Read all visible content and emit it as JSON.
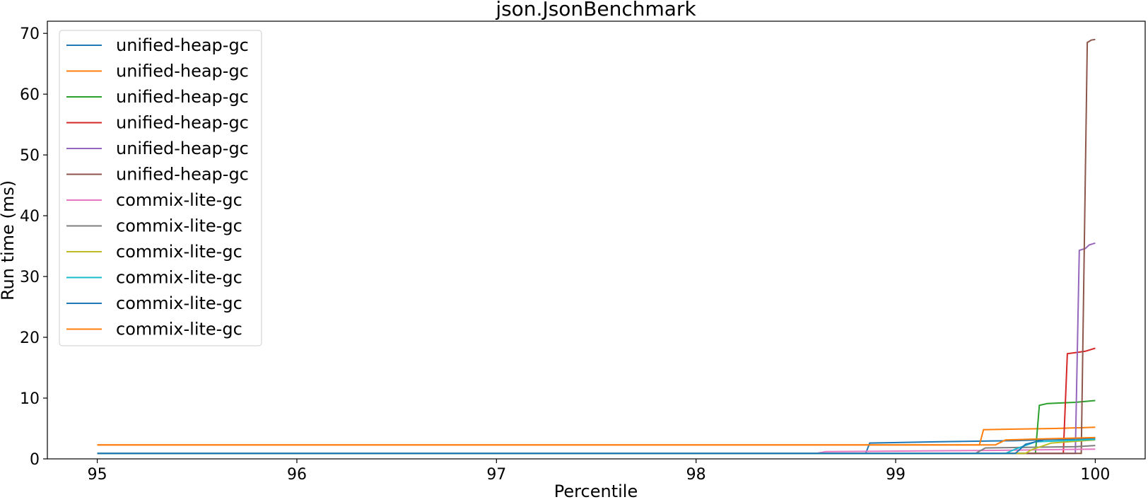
{
  "chart_data": {
    "type": "line",
    "title": "json.JsonBenchmark",
    "xlabel": "Percentile",
    "ylabel": "Run time (ms)",
    "xlim": [
      94.75,
      100.25
    ],
    "ylim": [
      0,
      72
    ],
    "xticks": [
      95,
      96,
      97,
      98,
      99,
      100
    ],
    "yticks": [
      0,
      10,
      20,
      30,
      40,
      50,
      60,
      70
    ],
    "legend_position": "top-left",
    "grid": false,
    "series": [
      {
        "name": "unified-heap-gc",
        "color": "#1f77b4",
        "points": [
          [
            95,
            0.9
          ],
          [
            98.85,
            0.9
          ],
          [
            98.87,
            2.6
          ],
          [
            99.2,
            2.8
          ],
          [
            99.6,
            3.0
          ],
          [
            99.8,
            3.2
          ],
          [
            100,
            3.3
          ]
        ]
      },
      {
        "name": "unified-heap-gc",
        "color": "#ff7f0e",
        "points": [
          [
            95,
            2.3
          ],
          [
            99.42,
            2.3
          ],
          [
            99.44,
            4.8
          ],
          [
            99.6,
            4.9
          ],
          [
            99.8,
            5.0
          ],
          [
            100,
            5.2
          ]
        ]
      },
      {
        "name": "unified-heap-gc",
        "color": "#2ca02c",
        "points": [
          [
            95,
            0.9
          ],
          [
            99.7,
            0.9
          ],
          [
            99.72,
            8.8
          ],
          [
            99.76,
            9.1
          ],
          [
            99.9,
            9.3
          ],
          [
            100,
            9.6
          ]
        ]
      },
      {
        "name": "unified-heap-gc",
        "color": "#d62728",
        "points": [
          [
            95,
            0.9
          ],
          [
            99.84,
            0.9
          ],
          [
            99.86,
            17.3
          ],
          [
            99.95,
            17.7
          ],
          [
            100,
            18.2
          ]
        ]
      },
      {
        "name": "unified-heap-gc",
        "color": "#9467bd",
        "points": [
          [
            95,
            0.9
          ],
          [
            99.9,
            0.9
          ],
          [
            99.92,
            34.3
          ],
          [
            99.95,
            34.6
          ],
          [
            99.97,
            35.2
          ],
          [
            100,
            35.5
          ]
        ]
      },
      {
        "name": "unified-heap-gc",
        "color": "#8c564b",
        "points": [
          [
            95,
            0.9
          ],
          [
            99.93,
            0.9
          ],
          [
            99.96,
            68.5
          ],
          [
            99.98,
            68.9
          ],
          [
            100,
            69.0
          ]
        ]
      },
      {
        "name": "commix-lite-gc",
        "color": "#e377c2",
        "points": [
          [
            95,
            0.9
          ],
          [
            98.6,
            0.9
          ],
          [
            98.65,
            1.2
          ],
          [
            99.5,
            1.4
          ],
          [
            100,
            1.6
          ]
        ]
      },
      {
        "name": "commix-lite-gc",
        "color": "#7f7f7f",
        "points": [
          [
            95,
            0.9
          ],
          [
            99.4,
            0.9
          ],
          [
            99.45,
            1.8
          ],
          [
            99.9,
            2.0
          ],
          [
            100,
            2.2
          ]
        ]
      },
      {
        "name": "commix-lite-gc",
        "color": "#bcbd22",
        "points": [
          [
            95,
            0.9
          ],
          [
            99.65,
            0.9
          ],
          [
            99.68,
            1.5
          ],
          [
            99.78,
            2.6
          ],
          [
            99.9,
            2.9
          ],
          [
            100,
            3.1
          ]
        ]
      },
      {
        "name": "commix-lite-gc",
        "color": "#17becf",
        "points": [
          [
            95,
            0.9
          ],
          [
            99.55,
            0.9
          ],
          [
            99.6,
            1.6
          ],
          [
            99.7,
            2.8
          ],
          [
            100,
            3.2
          ]
        ]
      },
      {
        "name": "commix-lite-gc",
        "color": "#1f77b4",
        "points": [
          [
            95,
            0.9
          ],
          [
            99.6,
            0.9
          ],
          [
            99.65,
            2.4
          ],
          [
            99.75,
            3.2
          ],
          [
            100,
            3.5
          ]
        ]
      },
      {
        "name": "commix-lite-gc",
        "color": "#ff7f0e",
        "points": [
          [
            95,
            2.3
          ],
          [
            99.5,
            2.3
          ],
          [
            99.55,
            3.1
          ],
          [
            99.75,
            3.3
          ],
          [
            100,
            3.5
          ]
        ]
      }
    ]
  }
}
